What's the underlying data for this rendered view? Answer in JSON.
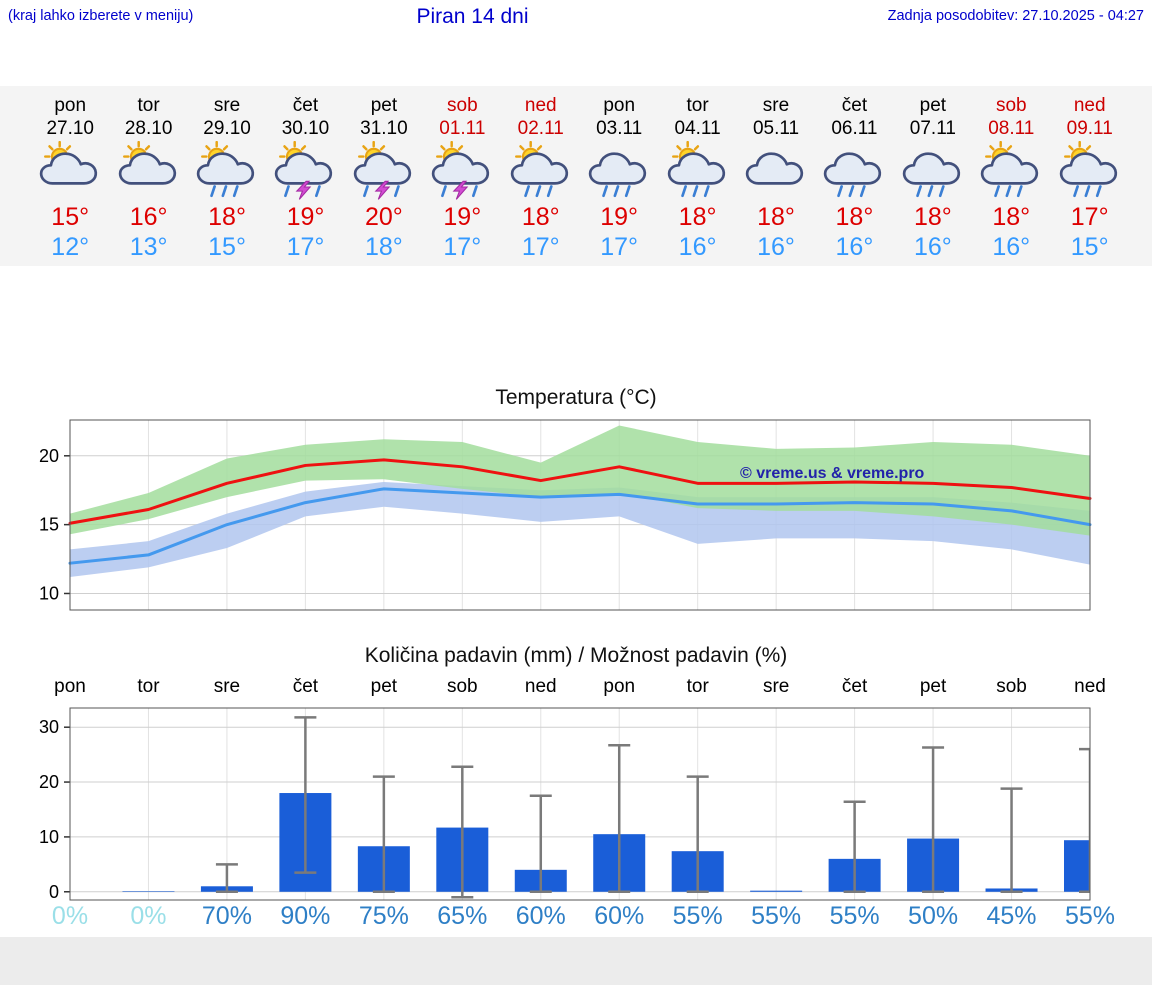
{
  "header": {
    "left_note": "(kraj lahko izberete v meniju)",
    "title": "Piran 14 dni",
    "updated": "Zadnja posodobitev: 27.10.2025 - 04:27"
  },
  "colors": {
    "header_blue": "#0000cc",
    "weekend_red": "#cc0000",
    "hi_red": "#dd0000",
    "lo_blue": "#3399ff",
    "bar_blue": "#1a5ed8",
    "percent_blue": "#2e7fc6",
    "percent_faint": "#9adfe8",
    "whisker_gray": "#7a7a7a",
    "watermark_blue": "#2222aa"
  },
  "watermark": "© vreme.us & vreme.pro",
  "forecast": {
    "days": [
      {
        "name": "pon",
        "date": "27.10",
        "weekend": false,
        "icon": "sun-cloud",
        "hi": "15°",
        "lo": "12°"
      },
      {
        "name": "tor",
        "date": "28.10",
        "weekend": false,
        "icon": "sun-cloud",
        "hi": "16°",
        "lo": "13°"
      },
      {
        "name": "sre",
        "date": "29.10",
        "weekend": false,
        "icon": "sun-cloud-rain",
        "hi": "18°",
        "lo": "15°"
      },
      {
        "name": "čet",
        "date": "30.10",
        "weekend": false,
        "icon": "sun-cloud-thunder",
        "hi": "19°",
        "lo": "17°"
      },
      {
        "name": "pet",
        "date": "31.10",
        "weekend": false,
        "icon": "sun-cloud-thunder",
        "hi": "20°",
        "lo": "18°"
      },
      {
        "name": "sob",
        "date": "01.11",
        "weekend": true,
        "icon": "sun-cloud-thunder",
        "hi": "19°",
        "lo": "17°"
      },
      {
        "name": "ned",
        "date": "02.11",
        "weekend": true,
        "icon": "sun-cloud-rain",
        "hi": "18°",
        "lo": "17°"
      },
      {
        "name": "pon",
        "date": "03.11",
        "weekend": false,
        "icon": "cloud-rain",
        "hi": "19°",
        "lo": "17°"
      },
      {
        "name": "tor",
        "date": "04.11",
        "weekend": false,
        "icon": "sun-cloud-rain",
        "hi": "18°",
        "lo": "16°"
      },
      {
        "name": "sre",
        "date": "05.11",
        "weekend": false,
        "icon": "cloud",
        "hi": "18°",
        "lo": "16°"
      },
      {
        "name": "čet",
        "date": "06.11",
        "weekend": false,
        "icon": "cloud-rain",
        "hi": "18°",
        "lo": "16°"
      },
      {
        "name": "pet",
        "date": "07.11",
        "weekend": false,
        "icon": "cloud-rain",
        "hi": "18°",
        "lo": "16°"
      },
      {
        "name": "sob",
        "date": "08.11",
        "weekend": true,
        "icon": "sun-cloud-rain",
        "hi": "18°",
        "lo": "16°"
      },
      {
        "name": "ned",
        "date": "09.11",
        "weekend": true,
        "icon": "sun-cloud-rain",
        "hi": "17°",
        "lo": "15°"
      }
    ]
  },
  "chart_data": [
    {
      "type": "line",
      "title": "Temperatura (°C)",
      "xlabel": "",
      "ylabel": "",
      "categories": [
        "pon 27.10",
        "tor 28.10",
        "sre 29.10",
        "čet 30.10",
        "pet 31.10",
        "sob 01.11",
        "ned 02.11",
        "pon 03.11",
        "tor 04.11",
        "sre 05.11",
        "čet 06.11",
        "pet 07.11",
        "sob 08.11",
        "ned 09.11"
      ],
      "ylim": [
        8.8,
        22.6
      ],
      "yticks": [
        10,
        15,
        20
      ],
      "grid": true,
      "series": [
        {
          "name": "max-temp",
          "color": "#ee1111",
          "values": [
            15.1,
            16.1,
            18.0,
            19.3,
            19.7,
            19.2,
            18.2,
            19.2,
            18.0,
            18.0,
            18.1,
            18.0,
            17.7,
            16.9
          ]
        },
        {
          "name": "min-temp",
          "color": "#4499ee",
          "values": [
            12.2,
            12.8,
            15.0,
            16.6,
            17.6,
            17.3,
            17.0,
            17.2,
            16.5,
            16.5,
            16.6,
            16.5,
            16.0,
            15.0
          ]
        }
      ],
      "bands": [
        {
          "name": "min-temp-range",
          "color": "#b0c6ee",
          "upper": [
            13.2,
            13.8,
            15.8,
            17.4,
            18.1,
            17.8,
            17.5,
            17.7,
            17.0,
            17.0,
            17.0,
            17.0,
            16.6,
            16.0
          ],
          "lower": [
            11.2,
            11.9,
            13.3,
            15.6,
            16.3,
            15.8,
            15.2,
            15.6,
            13.6,
            14.0,
            14.0,
            13.8,
            13.2,
            12.1
          ]
        },
        {
          "name": "max-temp-range",
          "color": "#a2dd9c",
          "upper": [
            15.8,
            17.3,
            19.8,
            20.8,
            21.2,
            21.0,
            19.5,
            22.2,
            21.0,
            20.5,
            20.6,
            21.0,
            20.8,
            20.0
          ],
          "lower": [
            14.3,
            15.4,
            17.0,
            18.2,
            18.3,
            17.6,
            17.0,
            17.3,
            16.2,
            16.0,
            16.0,
            15.6,
            15.0,
            14.2
          ]
        }
      ]
    },
    {
      "type": "bar",
      "title": "Količina padavin (mm) / Možnost padavin (%)",
      "xlabel": "",
      "ylabel": "",
      "categories": [
        "pon",
        "tor",
        "sre",
        "čet",
        "pet",
        "sob",
        "ned",
        "pon",
        "tor",
        "sre",
        "čet",
        "pet",
        "sob",
        "ned"
      ],
      "ylim": [
        -1.5,
        33.5
      ],
      "yticks": [
        0,
        10,
        20,
        30
      ],
      "grid": true,
      "values": [
        0,
        0.1,
        1.0,
        18.0,
        8.3,
        11.7,
        4.0,
        10.5,
        7.4,
        0.2,
        6.0,
        9.7,
        0.6,
        9.4
      ],
      "whisker_high": [
        0,
        0.2,
        5.0,
        31.8,
        21.0,
        22.8,
        17.5,
        26.7,
        21.0,
        0.4,
        16.4,
        26.3,
        18.8,
        26.0
      ],
      "whisker_low": [
        0,
        0,
        0,
        3.5,
        0,
        -1.0,
        0,
        0,
        0,
        0,
        0,
        0,
        0,
        0
      ],
      "probabilities": [
        "0%",
        "0%",
        "70%",
        "90%",
        "75%",
        "65%",
        "60%",
        "60%",
        "55%",
        "55%",
        "55%",
        "50%",
        "45%",
        "55%"
      ]
    }
  ]
}
